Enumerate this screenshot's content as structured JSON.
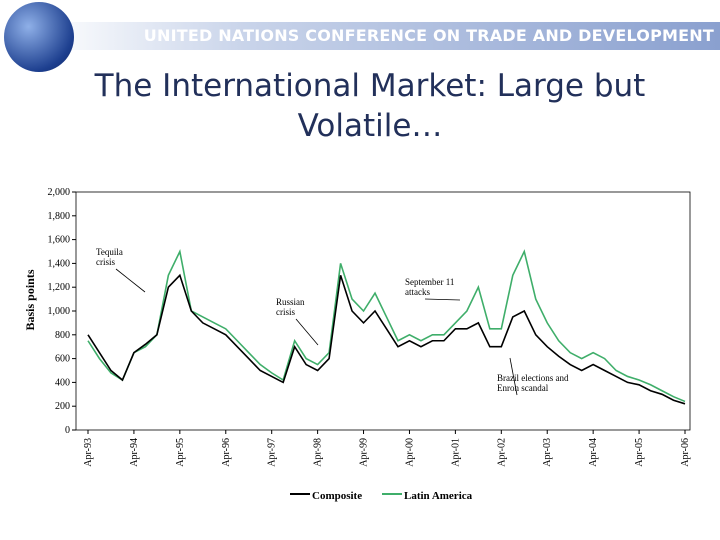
{
  "header": "UNITED NATIONS CONFERENCE ON TRADE AND DEVELOPMENT",
  "title": "The International Market: Large but Volatile…",
  "chart_data": {
    "type": "line",
    "y_label": "Basis points",
    "categories": [
      "Apr-93",
      null,
      null,
      null,
      "Apr-94",
      null,
      null,
      null,
      "Apr-95",
      null,
      null,
      null,
      "Apr-96",
      null,
      null,
      null,
      "Apr-97",
      null,
      null,
      null,
      "Apr-98",
      null,
      null,
      null,
      "Apr-99",
      null,
      null,
      null,
      "Apr-00",
      null,
      null,
      null,
      "Apr-01",
      null,
      null,
      null,
      "Apr-02",
      null,
      null,
      null,
      "Apr-03",
      null,
      null,
      null,
      "Apr-04",
      null,
      null,
      null,
      "Apr-05",
      null,
      null,
      null,
      "Apr-06"
    ],
    "series": [
      {
        "name": "Composite",
        "color": "#000000",
        "values": [
          800,
          650,
          500,
          420,
          650,
          720,
          800,
          1200,
          1300,
          1000,
          900,
          850,
          800,
          700,
          600,
          500,
          450,
          400,
          700,
          550,
          500,
          600,
          1300,
          1000,
          900,
          1000,
          850,
          700,
          750,
          700,
          750,
          750,
          850,
          850,
          900,
          700,
          700,
          950,
          1000,
          800,
          700,
          620,
          550,
          500,
          550,
          500,
          450,
          400,
          380,
          330,
          300,
          250,
          220
        ]
      },
      {
        "name": "Latin America",
        "color": "#3fae6a",
        "values": [
          750,
          600,
          480,
          420,
          650,
          700,
          800,
          1300,
          1500,
          1000,
          950,
          900,
          850,
          750,
          650,
          550,
          480,
          420,
          750,
          600,
          550,
          650,
          1400,
          1100,
          1000,
          1150,
          950,
          750,
          800,
          750,
          800,
          800,
          900,
          1000,
          1200,
          850,
          850,
          1300,
          1500,
          1100,
          900,
          750,
          650,
          600,
          650,
          600,
          500,
          450,
          420,
          380,
          330,
          280,
          240
        ]
      }
    ],
    "ylim": [
      0,
      2000
    ],
    "yticks": [
      0,
      200,
      400,
      600,
      800,
      {
        "value": 1000,
        "label": "1,000"
      },
      {
        "value": 1200,
        "label": "1,200"
      },
      {
        "value": 1400,
        "label": "1,400"
      },
      {
        "value": 1600,
        "label": "1,600"
      },
      {
        "value": 1800,
        "label": "1,800"
      },
      {
        "value": 2000,
        "label": "2,000"
      }
    ],
    "annotations": [
      "Tequila crisis",
      "Russian crisis",
      "September 11 attacks",
      "Brazil elections and Enron scandal"
    ]
  }
}
